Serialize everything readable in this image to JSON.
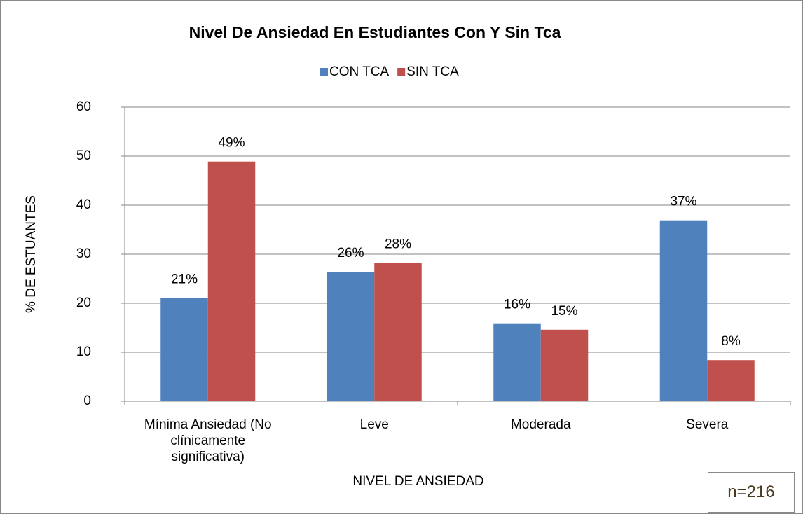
{
  "chart_data": {
    "type": "bar",
    "title": "Nivel  De Ansiedad En Estudiantes Con Y Sin Tca",
    "xlabel": "NIVEL DE ANSIEDAD",
    "ylabel": "% DE ESTUANTES",
    "annotation": "n=216",
    "categories": [
      "Mínima Ansiedad (No clínicamente significativa)",
      "Leve",
      "Moderada",
      "Severa"
    ],
    "series": [
      {
        "name": "CON TCA",
        "color": "#4f81bd",
        "values": [
          21.1,
          26.4,
          15.9,
          36.9
        ],
        "value_labels": [
          "21%",
          "26%",
          "16%",
          "37%"
        ]
      },
      {
        "name": "SIN TCA",
        "color": "#c0504d",
        "values": [
          48.9,
          28.2,
          14.6,
          8.4
        ],
        "value_labels": [
          "49%",
          "28%",
          "15%",
          "8%"
        ]
      }
    ],
    "ylim": [
      0,
      60
    ],
    "yticks": [
      0,
      10,
      20,
      30,
      40,
      50,
      60
    ],
    "grid": true,
    "legend": "top"
  }
}
